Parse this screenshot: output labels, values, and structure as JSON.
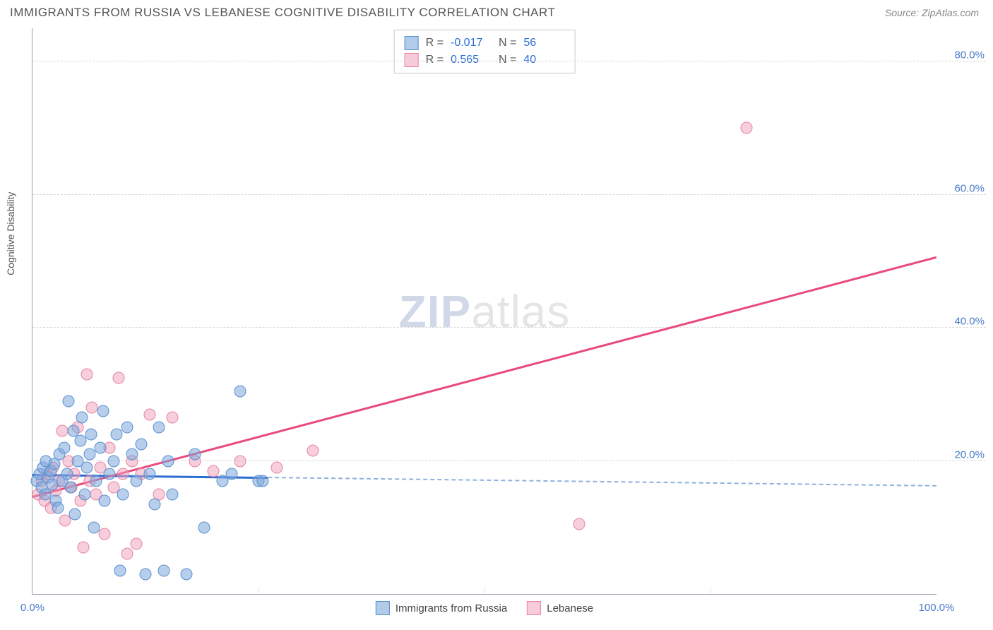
{
  "header": {
    "title": "IMMIGRANTS FROM RUSSIA VS LEBANESE COGNITIVE DISABILITY CORRELATION CHART",
    "source": "Source: ZipAtlas.com"
  },
  "chart": {
    "type": "scatter",
    "y_axis_label": "Cognitive Disability",
    "xlim": [
      0,
      100
    ],
    "ylim": [
      0,
      85
    ],
    "x_ticks": [
      0,
      100
    ],
    "x_tick_labels": [
      "0.0%",
      "100.0%"
    ],
    "x_minor_ticks": [
      25,
      50,
      75
    ],
    "y_ticks": [
      20,
      40,
      60,
      80
    ],
    "y_tick_labels": [
      "20.0%",
      "40.0%",
      "60.0%",
      "80.0%"
    ],
    "background_color": "#ffffff",
    "grid_color": "#d8d8d8",
    "axis_color": "#9aa4b0",
    "tick_label_color": "#4a7bc8",
    "tick_label_fontsize": 15,
    "marker_radius": 8.5,
    "series": {
      "russia": {
        "label": "Immigrants from Russia",
        "fill": "rgba(125,168,220,0.55)",
        "stroke": "#5a8fcf",
        "r_value": "-0.017",
        "n_value": "56",
        "points": [
          [
            0.5,
            17
          ],
          [
            0.8,
            18
          ],
          [
            1.0,
            16
          ],
          [
            1.2,
            19
          ],
          [
            1.4,
            15
          ],
          [
            1.5,
            20
          ],
          [
            1.7,
            17.5
          ],
          [
            2.0,
            18.5
          ],
          [
            2.2,
            16.5
          ],
          [
            2.4,
            19.5
          ],
          [
            2.6,
            14
          ],
          [
            2.8,
            13
          ],
          [
            3.0,
            21
          ],
          [
            3.3,
            17
          ],
          [
            3.5,
            22
          ],
          [
            3.8,
            18
          ],
          [
            4.0,
            29
          ],
          [
            4.2,
            16
          ],
          [
            4.5,
            24.5
          ],
          [
            4.7,
            12
          ],
          [
            5.0,
            20
          ],
          [
            5.3,
            23
          ],
          [
            5.5,
            26.5
          ],
          [
            5.8,
            15
          ],
          [
            6.0,
            19
          ],
          [
            6.3,
            21
          ],
          [
            6.5,
            24
          ],
          [
            6.8,
            10
          ],
          [
            7.0,
            17
          ],
          [
            7.5,
            22
          ],
          [
            7.8,
            27.5
          ],
          [
            8.0,
            14
          ],
          [
            8.5,
            18
          ],
          [
            9.0,
            20
          ],
          [
            9.3,
            24
          ],
          [
            9.7,
            3.5
          ],
          [
            10.0,
            15
          ],
          [
            10.5,
            25
          ],
          [
            11.0,
            21
          ],
          [
            11.5,
            17
          ],
          [
            12.0,
            22.5
          ],
          [
            12.5,
            3
          ],
          [
            13.0,
            18
          ],
          [
            13.5,
            13.5
          ],
          [
            14.0,
            25
          ],
          [
            14.5,
            3.5
          ],
          [
            15.0,
            20
          ],
          [
            15.5,
            15
          ],
          [
            17.0,
            3
          ],
          [
            18.0,
            21
          ],
          [
            19.0,
            10
          ],
          [
            21.0,
            17
          ],
          [
            22.0,
            18
          ],
          [
            23.0,
            30.5
          ],
          [
            25.0,
            17
          ],
          [
            25.5,
            17
          ]
        ],
        "trend": {
          "x1": 0,
          "y1": 17.8,
          "x2": 100,
          "y2": 16.1,
          "solid_until_x": 26,
          "solid_color": "#2c6dd4",
          "dash_color": "#8fb0dd"
        }
      },
      "lebanese": {
        "label": "Lebanese",
        "fill": "rgba(240,160,185,0.5)",
        "stroke": "#e7839f",
        "r_value": "0.565",
        "n_value": "40",
        "points": [
          [
            0.6,
            15
          ],
          [
            1.0,
            17
          ],
          [
            1.3,
            14
          ],
          [
            1.6,
            18
          ],
          [
            2.0,
            13
          ],
          [
            2.3,
            19
          ],
          [
            2.6,
            15.5
          ],
          [
            3.0,
            17
          ],
          [
            3.3,
            24.5
          ],
          [
            3.6,
            11
          ],
          [
            4.0,
            20
          ],
          [
            4.3,
            16
          ],
          [
            4.6,
            18
          ],
          [
            5.0,
            25
          ],
          [
            5.3,
            14
          ],
          [
            5.6,
            7
          ],
          [
            6.0,
            33
          ],
          [
            6.3,
            17
          ],
          [
            6.6,
            28
          ],
          [
            7.0,
            15
          ],
          [
            7.5,
            19
          ],
          [
            8.0,
            9
          ],
          [
            8.5,
            22
          ],
          [
            9.0,
            16
          ],
          [
            9.5,
            32.5
          ],
          [
            10.0,
            18
          ],
          [
            10.5,
            6
          ],
          [
            11.0,
            20
          ],
          [
            11.5,
            7.5
          ],
          [
            12.0,
            18
          ],
          [
            13.0,
            27
          ],
          [
            14.0,
            15
          ],
          [
            15.5,
            26.5
          ],
          [
            18.0,
            20
          ],
          [
            20.0,
            18.5
          ],
          [
            23.0,
            20
          ],
          [
            27.0,
            19
          ],
          [
            31.0,
            21.5
          ],
          [
            60.5,
            10.5
          ],
          [
            79.0,
            70
          ]
        ],
        "trend": {
          "x1": 0,
          "y1": 14.5,
          "x2": 100,
          "y2": 50.5,
          "solid_color": "#e84a7a"
        }
      }
    },
    "legend_top": {
      "r_label": "R =",
      "n_label": "N ="
    },
    "watermark": {
      "part1": "ZIP",
      "part2": "atlas"
    }
  }
}
